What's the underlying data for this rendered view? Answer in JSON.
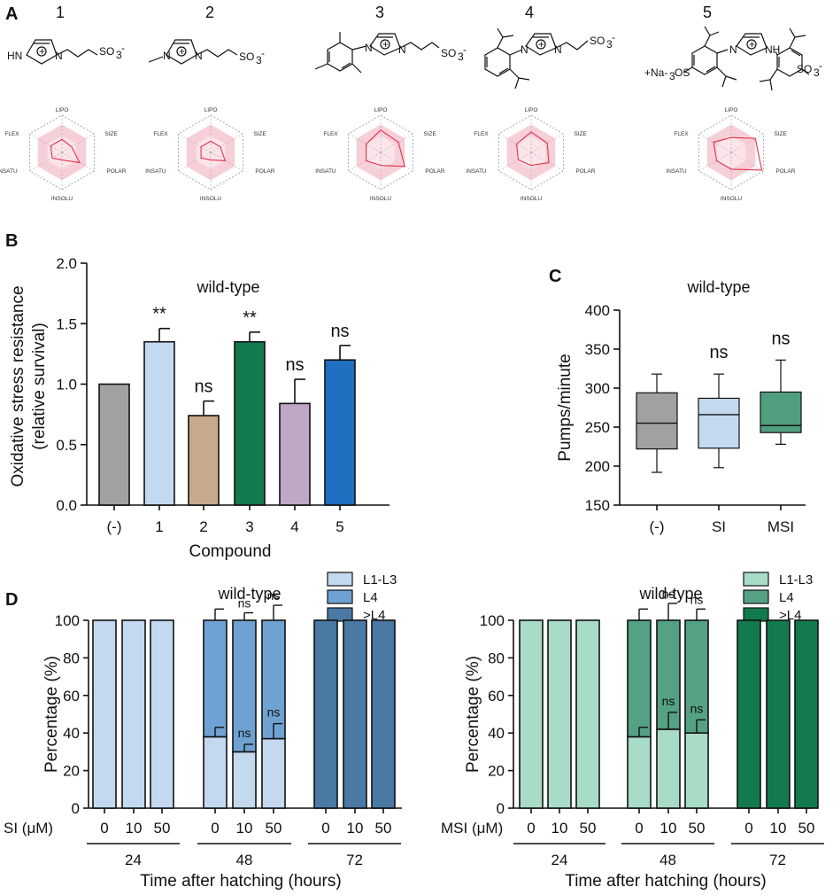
{
  "panels": {
    "A": "A",
    "B": "B",
    "C": "C",
    "D": "D"
  },
  "compounds": [
    {
      "number": "1",
      "structure_texts": [
        "HN",
        "+",
        "N",
        "SO",
        "3",
        "-"
      ]
    },
    {
      "number": "2",
      "structure_texts": [
        "N",
        "+",
        "N",
        "SO",
        "3",
        "-"
      ]
    },
    {
      "number": "3",
      "structure_texts": [
        "N",
        "+",
        "N",
        "SO",
        "3",
        "-"
      ]
    },
    {
      "number": "4",
      "structure_texts": [
        "N",
        "+",
        "N",
        "SO",
        "3",
        "-"
      ]
    },
    {
      "number": "5",
      "structure_texts": [
        "+Na-",
        "3",
        "OS",
        "N",
        "+",
        "NH",
        "SO",
        "3",
        "-"
      ]
    }
  ],
  "radar_axes": [
    "LIPO",
    "SIZE",
    "POLAR",
    "INSOLU",
    "INSATU",
    "FLEX"
  ],
  "radar_colors": {
    "band": "#f7cfd8",
    "line": "#e0314b",
    "grid": "#9a9a9a"
  },
  "chart_data": [
    {
      "id": "B",
      "type": "bar",
      "title": "wild-type",
      "xlabel": "Compound",
      "ylabel": [
        "Oxidative stress resistance",
        "(relative survival)"
      ],
      "ylim": [
        0,
        2.0
      ],
      "yticks": [
        "0.0",
        "0.5",
        "1.0",
        "1.5",
        "2.0"
      ],
      "ytick_values": [
        0,
        0.5,
        1.0,
        1.5,
        2.0
      ],
      "categories": [
        "(-)",
        "1",
        "2",
        "3",
        "4",
        "5"
      ],
      "values": [
        1.0,
        1.35,
        0.74,
        1.35,
        0.84,
        1.2
      ],
      "errors": [
        0,
        0.11,
        0.12,
        0.08,
        0.2,
        0.12
      ],
      "significance": [
        "",
        "**",
        "ns",
        "**",
        "ns",
        "ns"
      ],
      "colors": [
        "#9fa1a3",
        "#c3d9ef",
        "#c7a98b",
        "#127a4d",
        "#bfa8c6",
        "#1f6fc0"
      ]
    },
    {
      "id": "C",
      "type": "box",
      "title": "wild-type",
      "ylabel": "Pumps/minute",
      "ylim": [
        150,
        400
      ],
      "yticks": [
        "150",
        "200",
        "250",
        "300",
        "350",
        "400"
      ],
      "ytick_values": [
        150,
        200,
        250,
        300,
        350,
        400
      ],
      "categories": [
        "(-)",
        "SI",
        "MSI"
      ],
      "boxes": [
        {
          "min": 192,
          "q1": 222,
          "median": 255,
          "q3": 294,
          "max": 318
        },
        {
          "min": 198,
          "q1": 223,
          "median": 266,
          "q3": 287,
          "max": 318
        },
        {
          "min": 228,
          "q1": 243,
          "median": 252,
          "q3": 295,
          "max": 336
        }
      ],
      "significance": [
        "",
        "ns",
        "ns"
      ],
      "colors": [
        "#9fa1a3",
        "#c3d9ef",
        "#4f9e7e"
      ]
    },
    {
      "id": "D-left",
      "type": "stacked-bar",
      "title": "wild-type",
      "ylabel": "Percentage (%)",
      "xlabel": "Time after hatching (hours)",
      "dose_label": "SI (μM)",
      "ylim": [
        0,
        100
      ],
      "yticks": [
        "0",
        "20",
        "40",
        "60",
        "80",
        "100"
      ],
      "ytick_values": [
        0,
        20,
        40,
        60,
        80,
        100
      ],
      "time_groups": [
        "24",
        "48",
        "72"
      ],
      "doses": [
        "0",
        "10",
        "50"
      ],
      "series": [
        {
          "name": "L1-L3",
          "color": "#c3d9ef"
        },
        {
          "name": "L4",
          "color": "#6fa2d3"
        },
        {
          "name": ">L4",
          "color": "#4a79a4"
        }
      ],
      "bars": [
        {
          "stack": [
            100,
            0,
            0
          ]
        },
        {
          "stack": [
            100,
            0,
            0
          ]
        },
        {
          "stack": [
            100,
            0,
            0
          ]
        },
        {
          "stack": [
            38,
            62,
            0
          ],
          "err_low": 5,
          "err_top": 6,
          "sig": [
            "",
            ""
          ]
        },
        {
          "stack": [
            30,
            70,
            0
          ],
          "err_low": 4,
          "err_top": 4,
          "sig": [
            "ns",
            "ns"
          ]
        },
        {
          "stack": [
            37,
            63,
            0
          ],
          "err_low": 8,
          "err_top": 8,
          "sig": [
            "ns",
            "ns"
          ]
        },
        {
          "stack": [
            0,
            0,
            100
          ]
        },
        {
          "stack": [
            0,
            0,
            100
          ]
        },
        {
          "stack": [
            0,
            0,
            100
          ]
        }
      ]
    },
    {
      "id": "D-right",
      "type": "stacked-bar",
      "title": "wild-type",
      "ylabel": "Percentage (%)",
      "xlabel": "Time after hatching (hours)",
      "dose_label": "MSI (μM)",
      "ylim": [
        0,
        100
      ],
      "yticks": [
        "0",
        "20",
        "40",
        "60",
        "80",
        "100"
      ],
      "ytick_values": [
        0,
        20,
        40,
        60,
        80,
        100
      ],
      "time_groups": [
        "24",
        "48",
        "72"
      ],
      "doses": [
        "0",
        "10",
        "50"
      ],
      "series": [
        {
          "name": "L1-L3",
          "color": "#a8dcc7"
        },
        {
          "name": "L4",
          "color": "#55a184"
        },
        {
          "name": ">L4",
          "color": "#127a4d"
        }
      ],
      "bars": [
        {
          "stack": [
            100,
            0,
            0
          ]
        },
        {
          "stack": [
            100,
            0,
            0
          ]
        },
        {
          "stack": [
            100,
            0,
            0
          ]
        },
        {
          "stack": [
            38,
            62,
            0
          ],
          "err_low": 5,
          "err_top": 6,
          "sig": [
            "",
            ""
          ]
        },
        {
          "stack": [
            42,
            58,
            0
          ],
          "err_low": 9,
          "err_top": 9,
          "sig": [
            "ns",
            "ns"
          ]
        },
        {
          "stack": [
            40,
            60,
            0
          ],
          "err_low": 7,
          "err_top": 6,
          "sig": [
            "ns",
            "ns"
          ]
        },
        {
          "stack": [
            0,
            0,
            100
          ]
        },
        {
          "stack": [
            0,
            0,
            100
          ]
        },
        {
          "stack": [
            0,
            0,
            100
          ]
        }
      ]
    }
  ]
}
